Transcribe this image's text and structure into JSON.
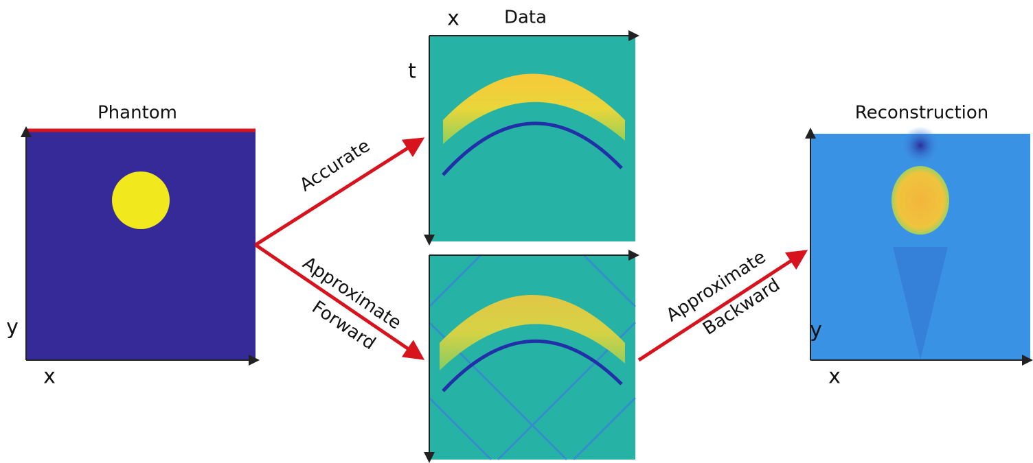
{
  "panels": [
    {
      "title": "Phantom",
      "x_label": "x",
      "y_label": "y"
    },
    {
      "title": "Data",
      "x_label": "x",
      "y_label": "t"
    },
    {
      "title": "Reconstruction",
      "x_label": "x",
      "y_label": "y"
    }
  ],
  "arrows": [
    {
      "lines": [
        "Accurate"
      ]
    },
    {
      "lines": [
        "Approximate",
        "Forward"
      ]
    },
    {
      "lines": [
        "Approximate",
        "Backward"
      ]
    }
  ]
}
